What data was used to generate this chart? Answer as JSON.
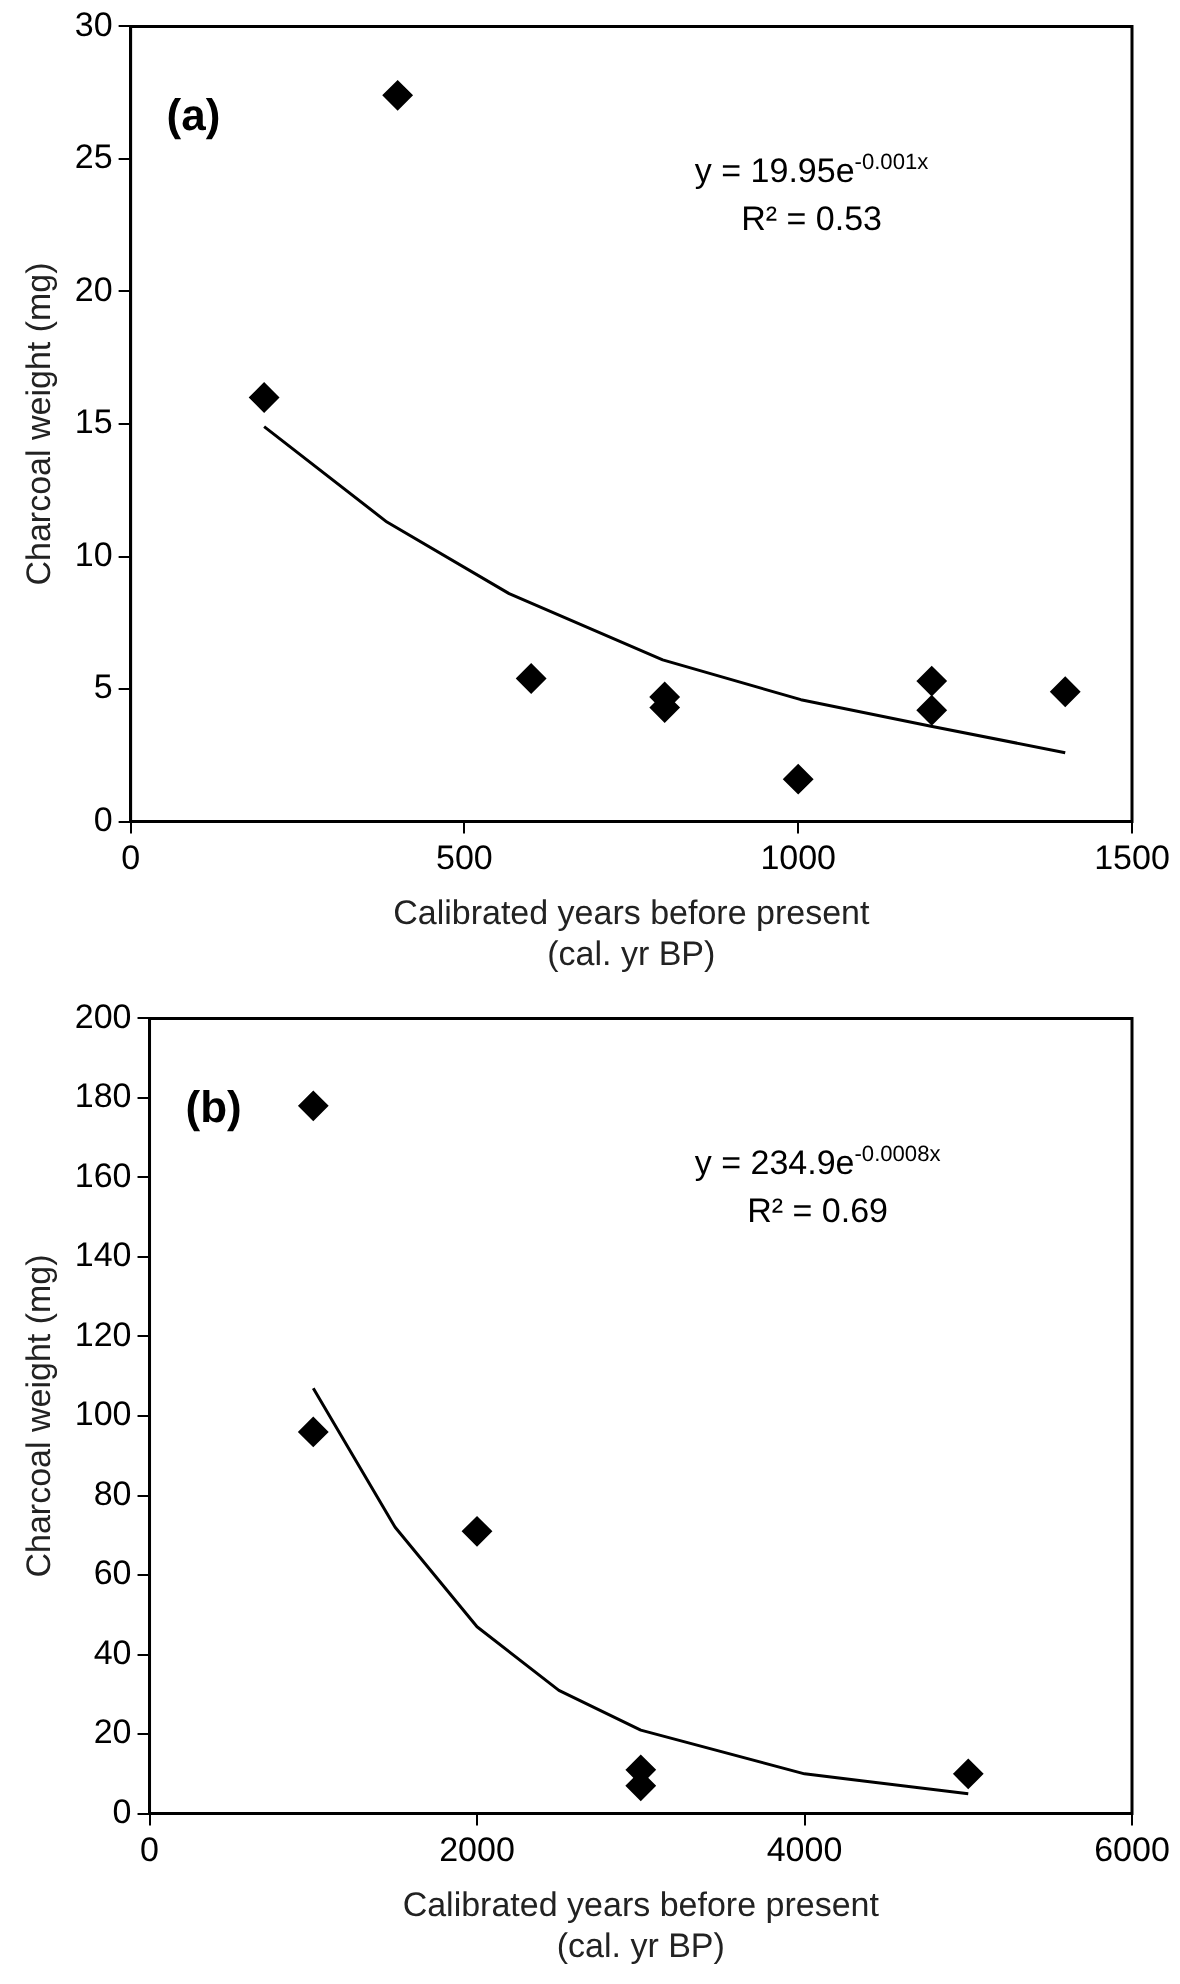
{
  "chart_data": [
    {
      "type": "scatter",
      "title": "(a)",
      "xlabel": "Calibrated years before present\n(cal. yr BP)",
      "ylabel": "Charcoal weight (mg)",
      "annotations": [
        "y = 19.95e$^{-0.001x}$",
        "R² = 0.53"
      ],
      "xlim": [
        0,
        1500
      ],
      "xticks": [
        0,
        500,
        1000,
        1500
      ],
      "ylim": [
        0,
        30
      ],
      "yticks": [
        0,
        5,
        10,
        15,
        20,
        25,
        30
      ],
      "grid": false,
      "legend": false,
      "marker": "diamond",
      "series": [
        {
          "color": "#000000",
          "x": [
            200,
            400,
            600,
            800,
            800,
            1000,
            1200,
            1200,
            1400
          ],
          "values": [
            16.0,
            27.4,
            5.4,
            4.7,
            4.3,
            1.6,
            5.3,
            4.2,
            4.9
          ]
        },
        {
          "type": "line",
          "color": "#000000",
          "marker": "none",
          "line_style": "solid",
          "x": [
            200,
            384,
            567,
            797,
            1004,
            1199,
            1400
          ],
          "values": [
            14.9,
            11.3,
            8.6,
            6.1,
            4.6,
            3.6,
            2.6
          ]
        }
      ]
    },
    {
      "type": "scatter",
      "title": "(b)",
      "xlabel": "Calibrated years before present\n(cal. yr BP)",
      "ylabel": "Charcoal weight (mg)",
      "annotations": [
        "y = 234.9e$^{-0.0008x}$",
        "R² = 0.69"
      ],
      "xlim": [
        0,
        6000
      ],
      "xticks": [
        0,
        2000,
        4000,
        6000
      ],
      "ylim": [
        0,
        200
      ],
      "yticks": [
        0,
        20,
        40,
        60,
        80,
        100,
        120,
        140,
        160,
        180,
        200
      ],
      "grid": false,
      "legend": false,
      "marker": "diamond",
      "series": [
        {
          "color": "#000000",
          "x": [
            1000,
            1000,
            2000,
            3000,
            3000,
            5000
          ],
          "values": [
            178,
            96,
            71,
            11,
            7,
            10
          ]
        },
        {
          "type": "line",
          "color": "#000000",
          "marker": "none",
          "line_style": "solid",
          "x": [
            1000,
            1500,
            2000,
            2500,
            3000,
            4000,
            5000
          ],
          "values": [
            107,
            72,
            47,
            31,
            21,
            10,
            5
          ]
        }
      ]
    }
  ]
}
